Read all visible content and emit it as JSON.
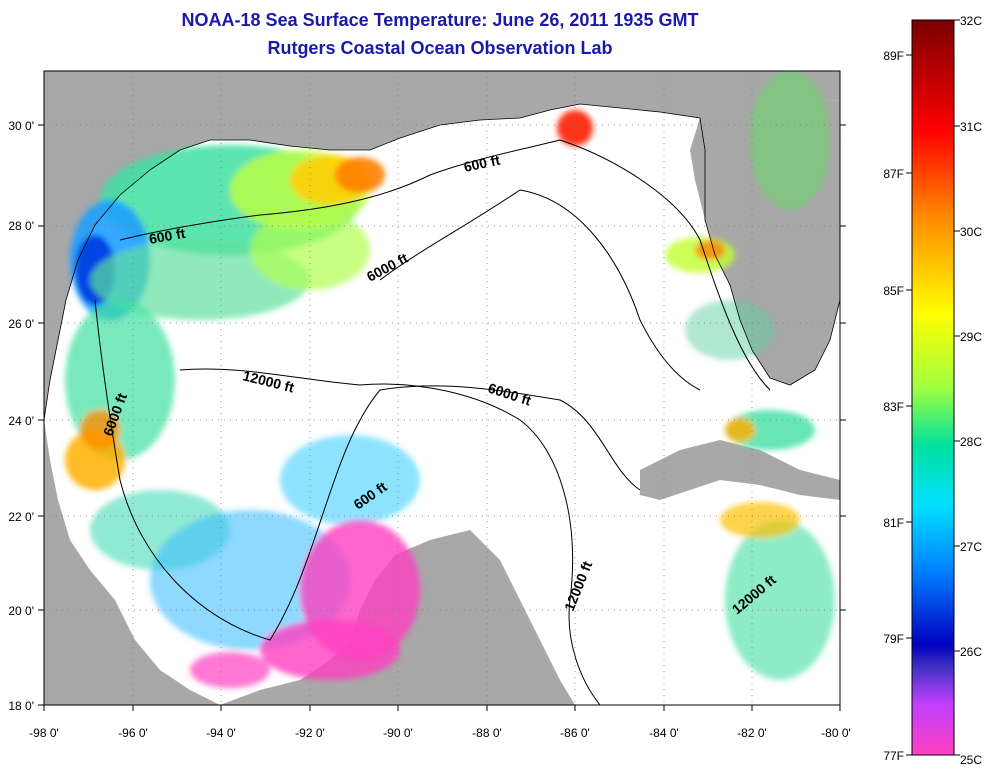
{
  "title": "NOAA-18 Sea Surface Temperature:  June 26, 2011 1935 GMT",
  "subtitle": "Rutgers Coastal Ocean Observation Lab",
  "map": {
    "lon_range": [
      -98,
      -80
    ],
    "lat_range": [
      18,
      31
    ],
    "x_ticks": [
      "-98 0'",
      "-96 0'",
      "-94 0'",
      "-92 0'",
      "-90 0'",
      "-88 0'",
      "-86 0'",
      "-84 0'",
      "-82 0'",
      "-80 0'"
    ],
    "y_ticks": [
      "18 0'",
      "20 0'",
      "22 0'",
      "24 0'",
      "26 0'",
      "28 0'",
      "30 0'"
    ],
    "grid": "dotted",
    "land_color": "#a8a8a8",
    "cloud_color": "#ffffff",
    "contour_labels": [
      "600 ft",
      "600 ft",
      "600 ft",
      "6000 ft",
      "6000 ft",
      "6000 ft",
      "12000 ft",
      "12000 ft",
      "12000 ft"
    ]
  },
  "colorbar": {
    "celsius": [
      "32C",
      "31C",
      "30C",
      "29C",
      "28C",
      "27C",
      "26C",
      "25C"
    ],
    "fahrenheit": [
      "89F",
      "87F",
      "85F",
      "83F",
      "81F",
      "79F",
      "77F"
    ],
    "colors": [
      "#7a0000",
      "#ff0000",
      "#ff8c00",
      "#ffff00",
      "#00e0e0",
      "#0060ff",
      "#0000b0",
      "#c040ff",
      "#ff40c0"
    ]
  }
}
